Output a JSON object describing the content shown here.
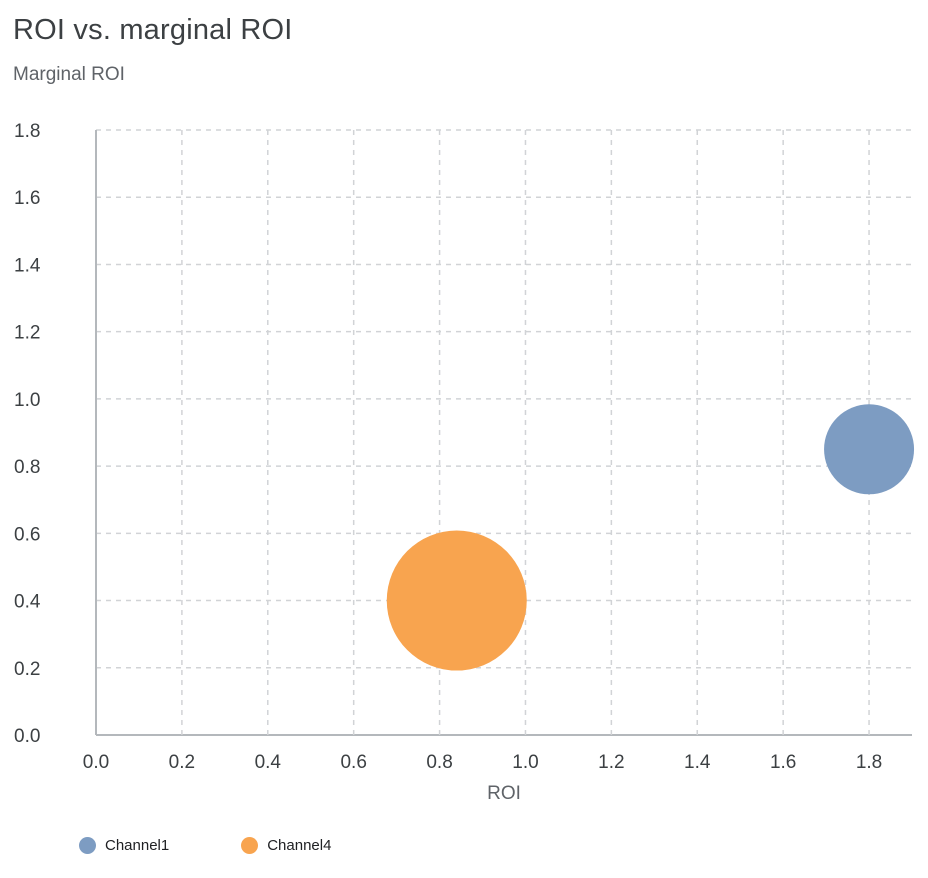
{
  "chart_data": {
    "type": "scatter",
    "title": "ROI vs. marginal ROI",
    "xlabel": "ROI",
    "ylabel": "Marginal ROI",
    "xlim": [
      0,
      1.9
    ],
    "ylim": [
      0,
      1.8
    ],
    "x_ticks": [
      0,
      0.2,
      0.4,
      0.6,
      0.8,
      1.0,
      1.2,
      1.4,
      1.6,
      1.8
    ],
    "y_ticks": [
      0,
      0.2,
      0.4,
      0.6,
      0.8,
      1.0,
      1.2,
      1.4,
      1.6,
      1.8
    ],
    "tick_decimals": 1,
    "grid": "dashed",
    "legend_position": "bottom",
    "series": [
      {
        "name": "Channel1",
        "color": "#7d9cc2",
        "points": [
          {
            "x": 1.8,
            "y": 0.85,
            "radius_px": 45
          }
        ]
      },
      {
        "name": "Channel4",
        "color": "#f8a44f",
        "points": [
          {
            "x": 0.84,
            "y": 0.4,
            "radius_px": 70
          }
        ]
      }
    ]
  },
  "colors": {
    "background": "#ffffff",
    "title": "#3c4043",
    "axis_title": "#5f6368",
    "tick_label": "#3c4043",
    "grid": "#d1d3d6",
    "axis": "#b4b8bc",
    "legend_label": "#202124"
  }
}
